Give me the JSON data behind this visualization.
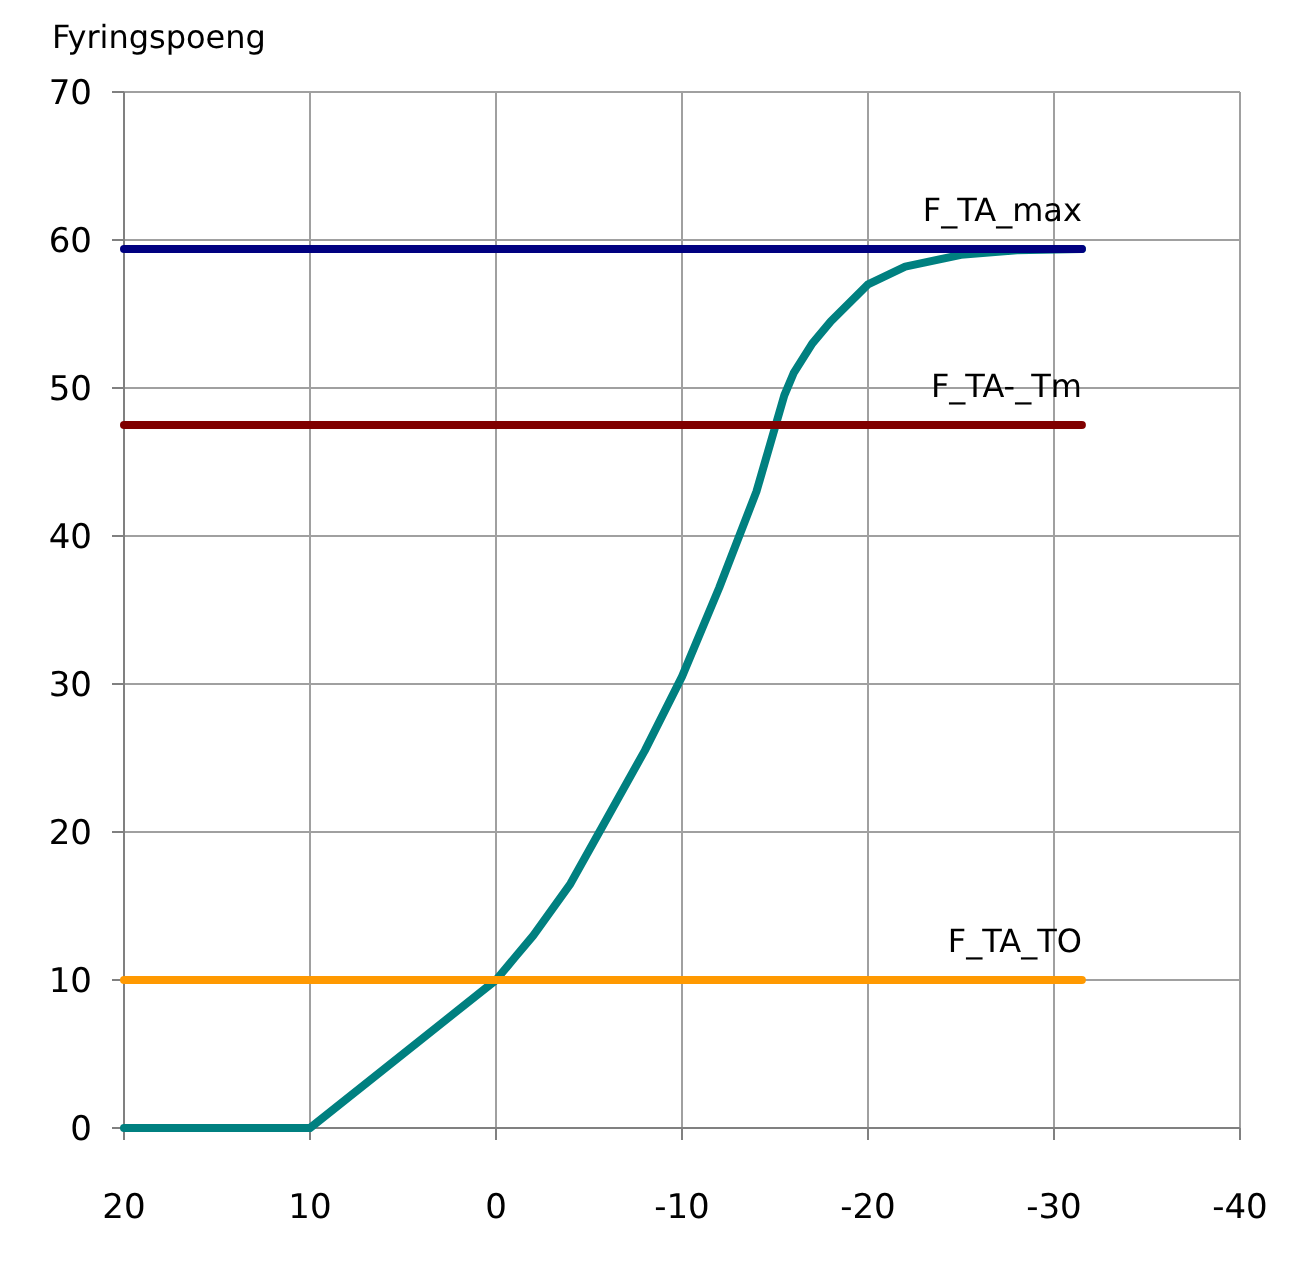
{
  "chart_data": {
    "type": "line",
    "ylabel": "Fyringspoeng",
    "xlim": [
      20,
      -40
    ],
    "xticks": [
      20,
      10,
      0,
      -10,
      -20,
      -30,
      -40
    ],
    "ylim": [
      0,
      70
    ],
    "yticks": [
      0,
      10,
      20,
      30,
      40,
      50,
      60,
      70
    ],
    "grid": true,
    "marker": "none",
    "line_style": "solid",
    "series": [
      {
        "color": "#008080",
        "x": [
          20,
          10,
          0,
          -1,
          -2,
          -4,
          -6,
          -8,
          -10,
          -12,
          -14,
          -15.5,
          -16,
          -17,
          -18,
          -20,
          -22,
          -25,
          -28,
          -31.5
        ],
        "values": [
          0,
          0,
          10,
          11.5,
          13,
          16.5,
          21,
          25.5,
          30.5,
          36.5,
          43,
          49.5,
          51,
          53,
          54.5,
          57,
          58.2,
          59,
          59.3,
          59.4
        ]
      },
      {
        "name": "F_TA_max",
        "color": "#000080",
        "x": [
          20,
          -31.5
        ],
        "values": [
          59.4,
          59.4
        ]
      },
      {
        "name": "F_TA-_Tm",
        "color": "#800000",
        "x": [
          20,
          -31.5
        ],
        "values": [
          47.5,
          47.5
        ]
      },
      {
        "name": "F_TA_TO",
        "color": "#ff9900",
        "x": [
          20,
          -31.5
        ],
        "values": [
          10,
          10
        ]
      }
    ]
  }
}
